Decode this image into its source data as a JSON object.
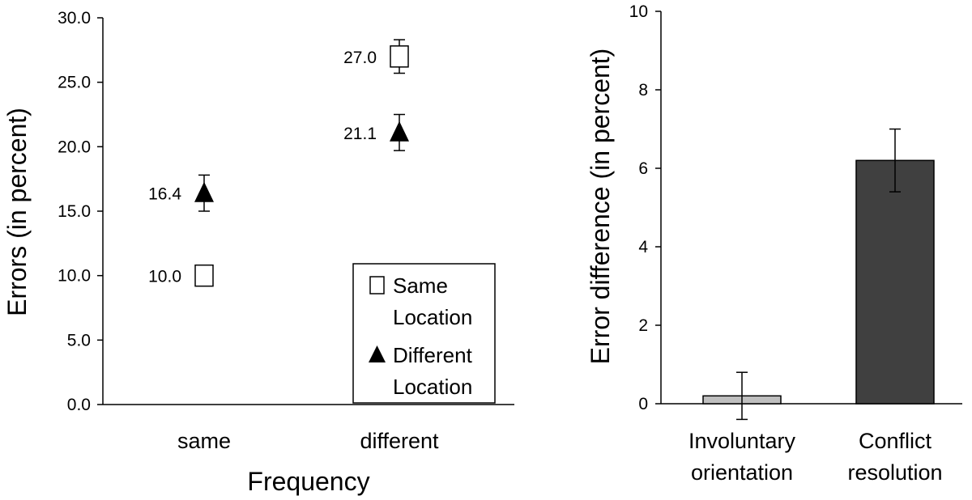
{
  "chart_data": [
    {
      "type": "scatter",
      "xlabel": "Frequency",
      "ylabel": "Errors (in percent)",
      "categories": [
        "same",
        "different"
      ],
      "ylim": [
        0,
        30
      ],
      "yticks": [
        "0.0",
        "5.0",
        "10.0",
        "15.0",
        "20.0",
        "25.0",
        "30.0"
      ],
      "series": [
        {
          "name": "Same Location",
          "legend_lines": [
            "Same",
            "Location"
          ],
          "marker": "square",
          "values": [
            10.0,
            27.0
          ],
          "errors": [
            0.0,
            1.3
          ],
          "labels": [
            "10.0",
            "27.0"
          ]
        },
        {
          "name": "Different Location",
          "legend_lines": [
            "Different",
            "Location"
          ],
          "marker": "triangle",
          "values": [
            16.4,
            21.1
          ],
          "errors": [
            1.4,
            1.4
          ],
          "labels": [
            "16.4",
            "21.1"
          ]
        }
      ]
    },
    {
      "type": "bar",
      "ylabel": "Error difference (in percent)",
      "categories": [
        [
          "Involuntary",
          "orientation"
        ],
        [
          "Conflict",
          "resolution"
        ]
      ],
      "ylim": [
        0,
        10
      ],
      "yticks": [
        "0",
        "2",
        "4",
        "6",
        "8",
        "10"
      ],
      "values": [
        0.2,
        6.2
      ],
      "errors": [
        0.6,
        0.8
      ],
      "colors": [
        "#bfbfbf",
        "#404040"
      ]
    }
  ]
}
